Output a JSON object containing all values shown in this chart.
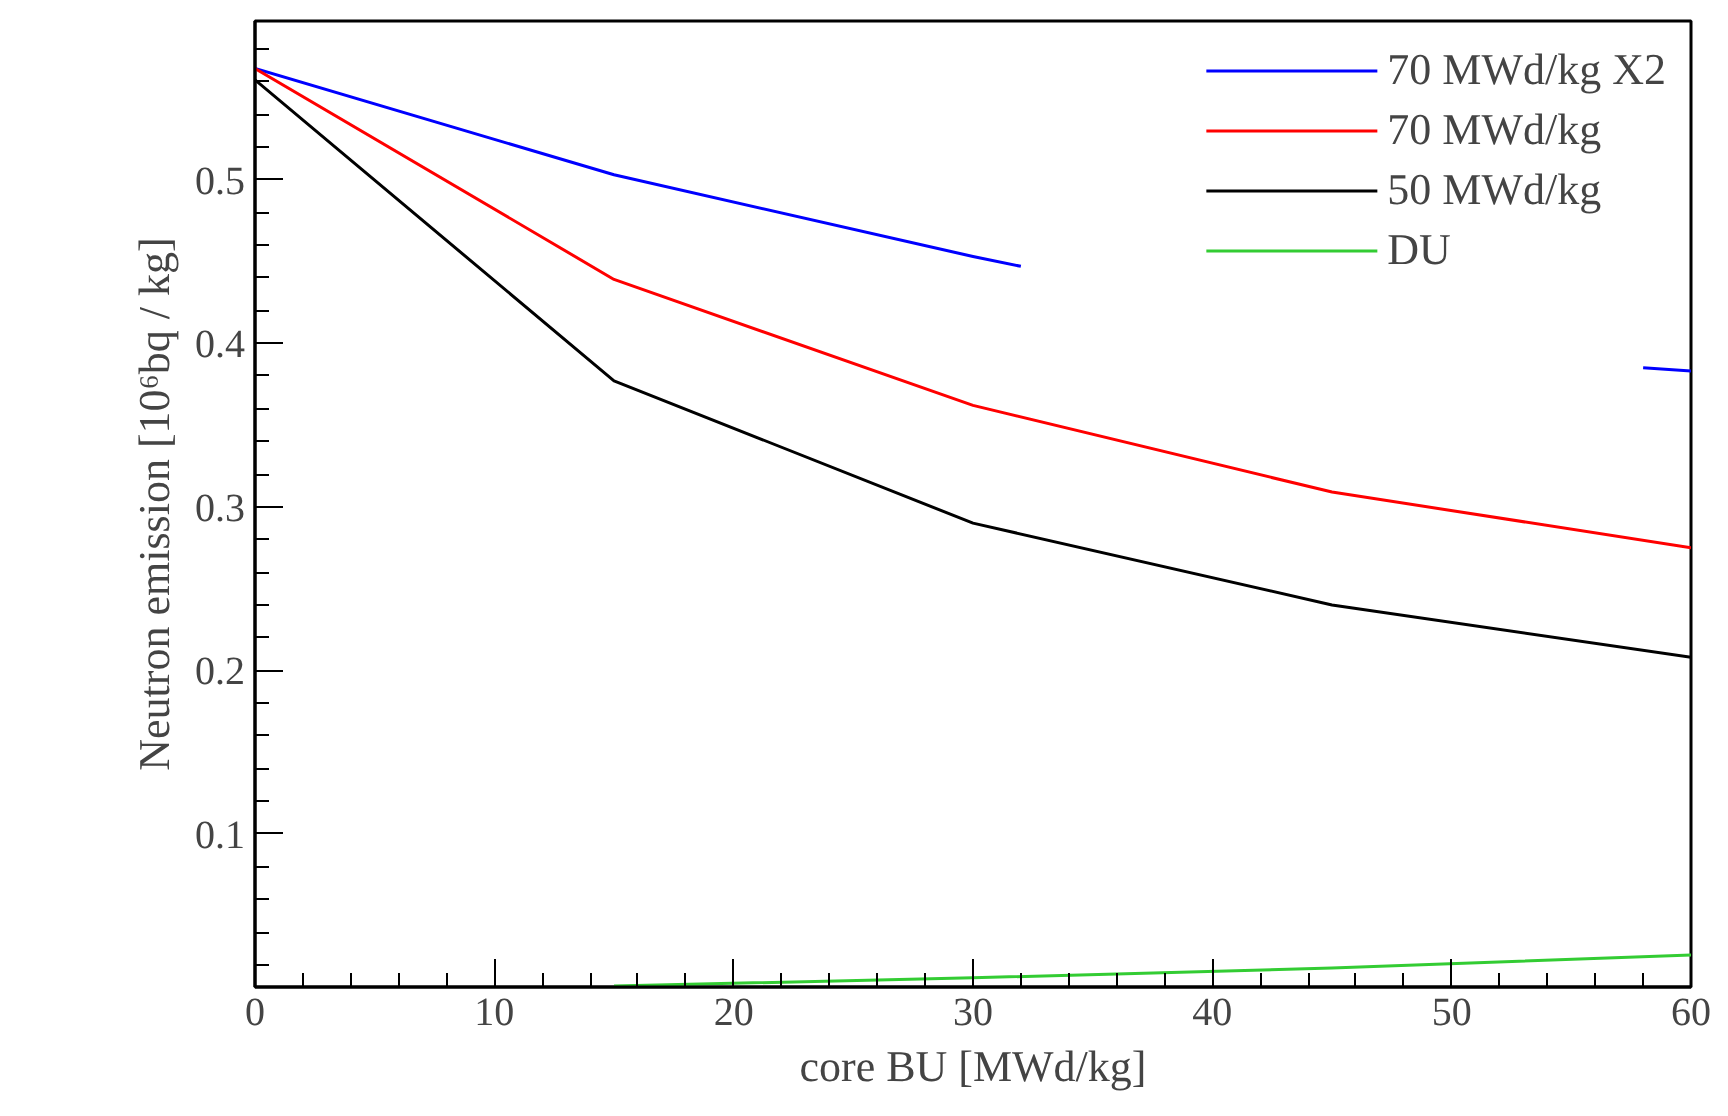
{
  "chart_data": {
    "type": "line",
    "xlabel": "core BU [MWd/kg]",
    "ylabel": "Neutron emission [10⁶bq / kg]",
    "x": [
      0,
      15,
      30,
      45,
      60
    ],
    "xlim": [
      0,
      60
    ],
    "xticks": [
      0,
      10,
      20,
      30,
      40,
      50,
      60
    ],
    "ylim": [
      0.0064,
      0.597
    ],
    "yticks": [
      0.1,
      0.2,
      0.3,
      0.4,
      0.5
    ],
    "grid": false,
    "legend": "top right",
    "line_style": "solid",
    "marker": "none",
    "series": [
      {
        "name": "70 MWd/kg X2",
        "color": "#0000ff",
        "x": [
          0,
          15,
          30,
          32,
          45,
          58,
          60
        ],
        "values": [
          0.568,
          0.503,
          0.453,
          0.447,
          null,
          0.385,
          0.383
        ]
      },
      {
        "name": "70 MWd/kg",
        "color": "#ff0000",
        "values": [
          0.568,
          0.439,
          0.362,
          0.309,
          0.275
        ]
      },
      {
        "name": "50 MWd/kg",
        "color": "#000000",
        "values": [
          0.561,
          0.377,
          0.29,
          0.24,
          0.208
        ]
      },
      {
        "name": "DU",
        "color": "#33cc33",
        "values": [
          null,
          0.007,
          0.012,
          0.018,
          0.026
        ]
      }
    ]
  }
}
